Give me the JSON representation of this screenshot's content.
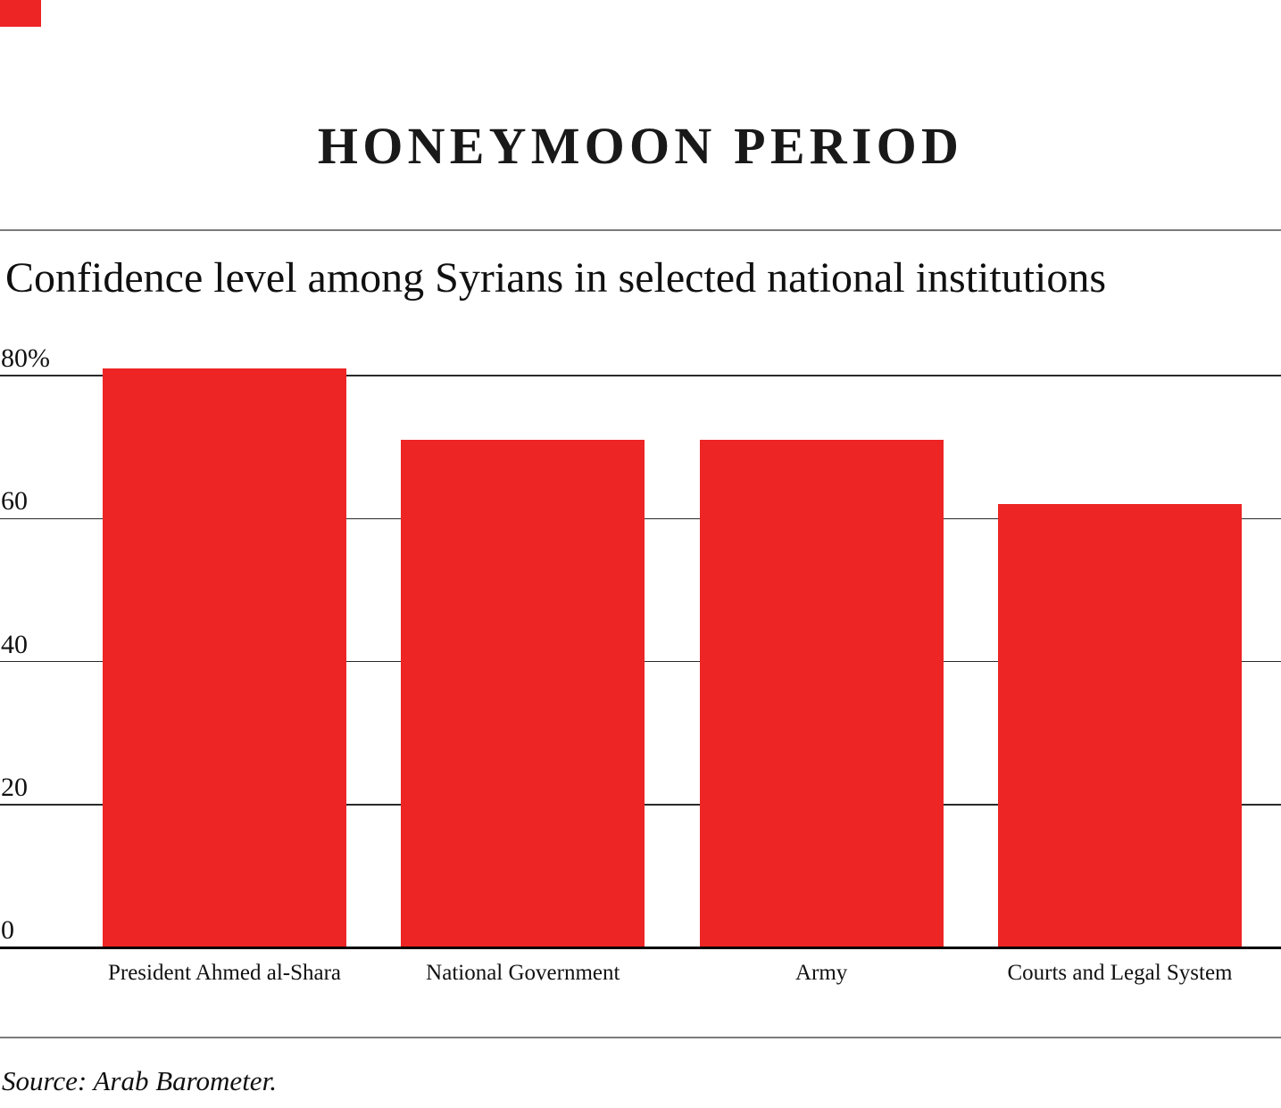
{
  "brand": {
    "accent_color": "#ED2524"
  },
  "chart_data": {
    "type": "bar",
    "title": "HONEYMOON PERIOD",
    "subtitle": "Confidence level among Syrians in selected national institutions",
    "categories": [
      "President Ahmed al-Shara",
      "National Government",
      "Army",
      "Courts and Legal System"
    ],
    "values": [
      81,
      71,
      71,
      62
    ],
    "unit": "percent",
    "bar_color": "#ED2524",
    "xlabel": "",
    "ylabel": "",
    "ylim": [
      0,
      80
    ],
    "yticks": [
      {
        "value": 80,
        "label": "80%"
      },
      {
        "value": 60,
        "label": "60"
      },
      {
        "value": 40,
        "label": "40"
      },
      {
        "value": 20,
        "label": "20"
      },
      {
        "value": 0,
        "label": "0"
      }
    ],
    "grid": "horizontal",
    "legend": "none",
    "source": "Source: Arab Barometer."
  }
}
